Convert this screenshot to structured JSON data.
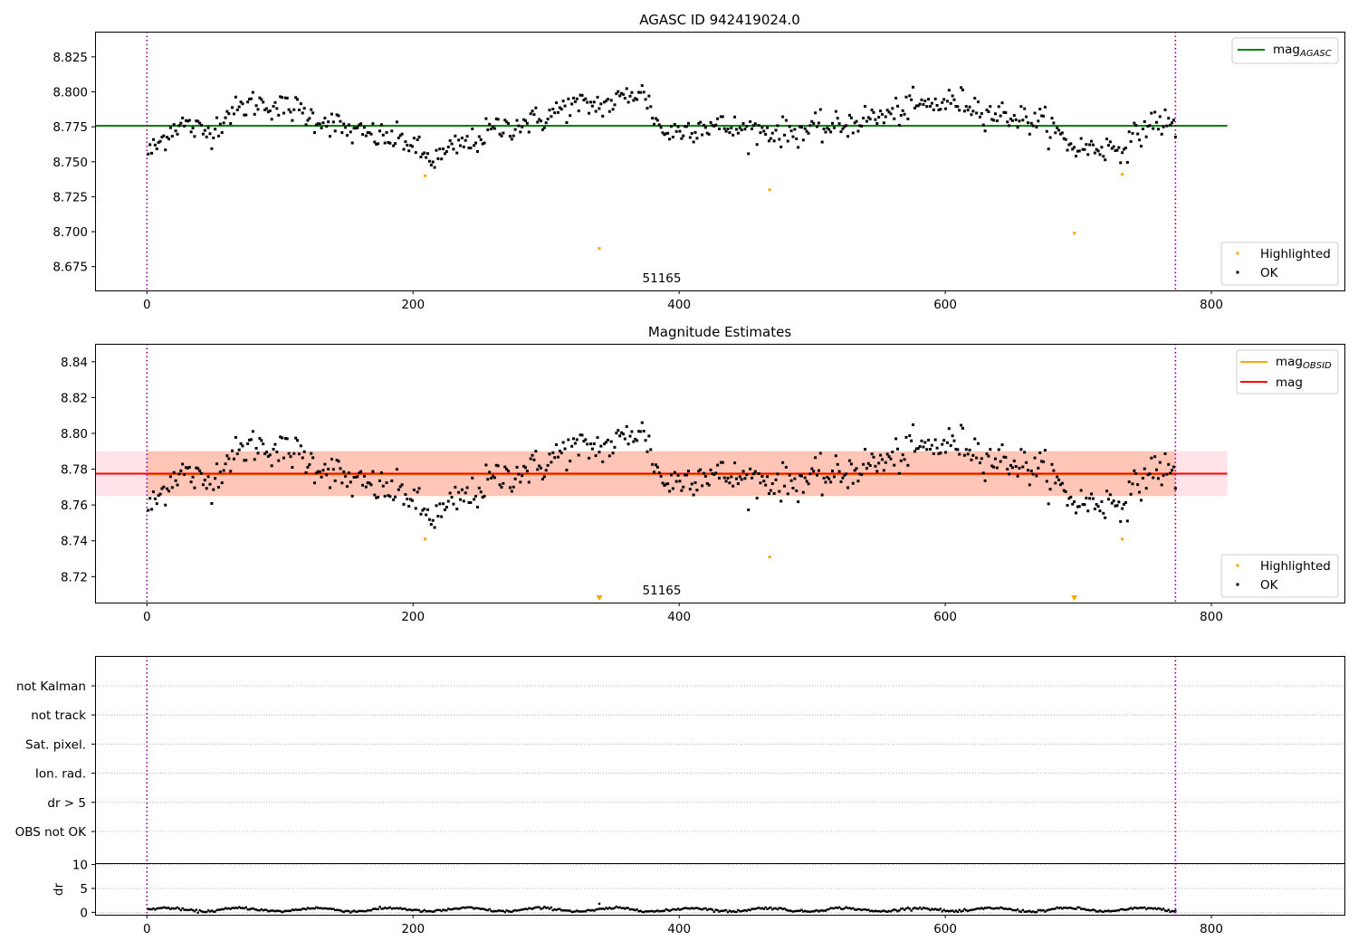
{
  "chart_data": [
    {
      "type": "scatter",
      "title": "AGASC ID 942419024.0",
      "annotation": "51165",
      "xlim": [
        -39,
        900
      ],
      "ylim": [
        8.658,
        8.843
      ],
      "x_ticks": [
        0,
        200,
        400,
        600,
        800
      ],
      "y_ticks": [
        8.675,
        8.7,
        8.725,
        8.75,
        8.775,
        8.8,
        8.825
      ],
      "y_tick_labels": [
        "8.675",
        "8.700",
        "8.725",
        "8.750",
        "8.775",
        "8.800",
        "8.825"
      ],
      "vlines": [
        0,
        773
      ],
      "reference_lines": [
        {
          "label_main": "mag",
          "label_sub": "AGASC",
          "value": 8.7757,
          "x_range": [
            -39,
            812
          ],
          "color": "#008000"
        }
      ],
      "highlighted": [
        [
          209,
          8.74
        ],
        [
          340,
          8.688
        ],
        [
          468,
          8.73
        ],
        [
          697,
          8.699
        ],
        [
          733,
          8.741
        ]
      ],
      "ok_curve": {
        "x_range": [
          1,
          773
        ],
        "points": 600,
        "anchors": [
          [
            0,
            8.757
          ],
          [
            25,
            8.777
          ],
          [
            45,
            8.771
          ],
          [
            65,
            8.786
          ],
          [
            80,
            8.792
          ],
          [
            110,
            8.788
          ],
          [
            130,
            8.78
          ],
          [
            160,
            8.77
          ],
          [
            190,
            8.766
          ],
          [
            215,
            8.752
          ],
          [
            240,
            8.763
          ],
          [
            265,
            8.774
          ],
          [
            290,
            8.779
          ],
          [
            320,
            8.79
          ],
          [
            345,
            8.791
          ],
          [
            370,
            8.8
          ],
          [
            390,
            8.771
          ],
          [
            420,
            8.776
          ],
          [
            450,
            8.773
          ],
          [
            480,
            8.771
          ],
          [
            510,
            8.774
          ],
          [
            550,
            8.782
          ],
          [
            580,
            8.79
          ],
          [
            610,
            8.793
          ],
          [
            640,
            8.784
          ],
          [
            670,
            8.779
          ],
          [
            700,
            8.76
          ],
          [
            730,
            8.76
          ],
          [
            760,
            8.779
          ],
          [
            773,
            8.775
          ]
        ],
        "scatter": 0.009
      },
      "legend": [
        {
          "label": "Highlighted",
          "color": "#ffa500"
        },
        {
          "label": "OK",
          "color": "#000000"
        }
      ]
    },
    {
      "type": "scatter",
      "title": "Magnitude Estimates",
      "annotation": "51165",
      "xlim": [
        -39,
        900
      ],
      "ylim": [
        8.7055,
        8.85
      ],
      "x_ticks": [
        0,
        200,
        400,
        600,
        800
      ],
      "y_ticks": [
        8.72,
        8.74,
        8.76,
        8.78,
        8.8,
        8.82,
        8.84
      ],
      "y_tick_labels": [
        "8.72",
        "8.74",
        "8.76",
        "8.78",
        "8.80",
        "8.82",
        "8.84"
      ],
      "vlines": [
        0,
        773
      ],
      "bands": [
        {
          "y_range": [
            8.765,
            8.79
          ],
          "x_range": [
            -39,
            812
          ],
          "color": "#ffc0cb"
        },
        {
          "y_range": [
            8.765,
            8.79
          ],
          "x_range": [
            0,
            773
          ],
          "color": "#ffa07a"
        }
      ],
      "reference_lines": [
        {
          "label_main": "mag",
          "label_sub": "OBSID",
          "value": 8.7772,
          "x_range": [
            0,
            773
          ],
          "color": "#ffa500"
        },
        {
          "label_main": "mag",
          "label_sub": "",
          "value": 8.7775,
          "x_range": [
            -39,
            812
          ],
          "color": "#ff0000"
        }
      ],
      "highlighted": [
        [
          209,
          8.741
        ],
        [
          468,
          8.731
        ],
        [
          733,
          8.741
        ]
      ],
      "off_scale_markers": [
        340,
        697
      ],
      "legend": [
        {
          "label": "Highlighted",
          "color": "#ffa500"
        },
        {
          "label": "OK",
          "color": "#000000"
        }
      ]
    },
    {
      "type": "flags",
      "rows": [
        "not Kalman",
        "not track",
        "Sat. pixel.",
        "Ion. rad.",
        "dr > 5",
        "OBS not OK"
      ],
      "vlines": [
        0,
        773
      ]
    },
    {
      "type": "scatter",
      "ylabel": "dr",
      "xlim": [
        -39,
        900
      ],
      "ylim": [
        -0.5,
        10.3
      ],
      "x_ticks": [
        0,
        200,
        400,
        600,
        800
      ],
      "y_ticks": [
        0,
        5,
        10
      ],
      "y_tick_labels": [
        "0",
        "5",
        "10"
      ],
      "vlines": [
        0,
        773
      ],
      "dr_curve": {
        "x_range": [
          1,
          773
        ],
        "points": 600,
        "base": 0.55,
        "amp": 0.35,
        "outliers": [
          [
            340,
            1.8
          ]
        ]
      }
    }
  ]
}
